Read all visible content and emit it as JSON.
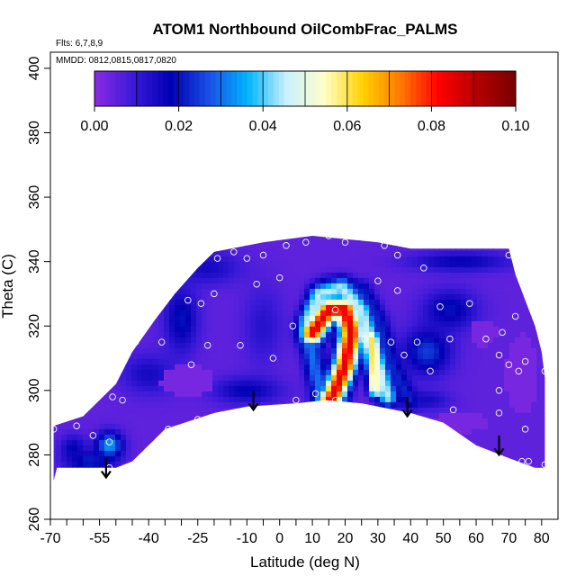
{
  "chart_data": {
    "type": "heatmap",
    "title": "ATOM1 Northbound OilCombFrac_PALMS",
    "notes": [
      "Flts: 6,7,8,9",
      "MMDD: 0812,0815,0817,0820"
    ],
    "xlabel": "Latitude (deg N)",
    "ylabel": "Theta (C)",
    "xlim": [
      -70,
      85
    ],
    "ylim": [
      260,
      405
    ],
    "x_ticks_major": [
      -70,
      -55,
      -40,
      -25,
      -10,
      0,
      10,
      20,
      30,
      40,
      50,
      60,
      70,
      80
    ],
    "x_ticks_minor": [
      -65,
      -60,
      -50,
      -45,
      -35,
      -30,
      -20,
      -15,
      -5,
      5,
      15,
      25,
      35,
      45,
      55,
      65,
      75
    ],
    "y_ticks": [
      260,
      280,
      300,
      320,
      340,
      360,
      380,
      400
    ],
    "colorbar": {
      "range": [
        0,
        0.1
      ],
      "ticks": [
        "0.00",
        "0.02",
        "0.04",
        "0.06",
        "0.08",
        "0.10"
      ],
      "tick_values": [
        0,
        0.02,
        0.04,
        0.06,
        0.08,
        0.1
      ],
      "colors": [
        "#8a2be2",
        "#3a1ad8",
        "#0000b4",
        "#1a50e6",
        "#00b4ff",
        "#c8f0ff",
        "#ffffc8",
        "#ffd200",
        "#ff7800",
        "#ff0000",
        "#b40000",
        "#780000"
      ]
    },
    "field_outline": [
      [
        -69,
        272
      ],
      [
        -69,
        289
      ],
      [
        -60,
        292
      ],
      [
        -50,
        302
      ],
      [
        -45,
        312
      ],
      [
        -38,
        322
      ],
      [
        -32,
        330
      ],
      [
        -25,
        338
      ],
      [
        -20,
        343
      ],
      [
        -5,
        346
      ],
      [
        10,
        348
      ],
      [
        30,
        346
      ],
      [
        40,
        344
      ],
      [
        70,
        344
      ],
      [
        72,
        336
      ],
      [
        75,
        328
      ],
      [
        78,
        320
      ],
      [
        80,
        312
      ],
      [
        81,
        304
      ],
      [
        81,
        276
      ],
      [
        78,
        276
      ],
      [
        70,
        279
      ],
      [
        60,
        283
      ],
      [
        50,
        290
      ],
      [
        40,
        293
      ],
      [
        25,
        296
      ],
      [
        14,
        297
      ],
      [
        5,
        296
      ],
      [
        -10,
        295
      ],
      [
        -20,
        293
      ],
      [
        -35,
        288
      ],
      [
        -45,
        278
      ],
      [
        -50,
        276
      ],
      [
        -68,
        276
      ]
    ],
    "background_value": 0.005,
    "features": [
      {
        "kind": "ridge",
        "points": [
          [
            10,
            318
          ],
          [
            15,
            325
          ],
          [
            20,
            325
          ],
          [
            22,
            318
          ],
          [
            20,
            308
          ],
          [
            17,
            300
          ],
          [
            15,
            296
          ]
        ],
        "value": 0.085,
        "width": 3.5
      },
      {
        "kind": "ridge",
        "points": [
          [
            9,
            322
          ],
          [
            12,
            330
          ],
          [
            19,
            332
          ],
          [
            25,
            325
          ],
          [
            28,
            315
          ],
          [
            31,
            305
          ],
          [
            33,
            298
          ]
        ],
        "value": 0.045,
        "width": 3
      },
      {
        "kind": "ridge",
        "points": [
          [
            9,
            316
          ],
          [
            11,
            305
          ],
          [
            13,
            298
          ]
        ],
        "value": 0.03,
        "width": 3
      },
      {
        "kind": "ridge",
        "points": [
          [
            15,
            332
          ],
          [
            25,
            331
          ],
          [
            30,
            322
          ],
          [
            34,
            308
          ],
          [
            38,
            300
          ],
          [
            40,
            297
          ]
        ],
        "value": 0.022,
        "width": 3
      },
      {
        "kind": "ridge",
        "points": [
          [
            28,
            316
          ],
          [
            29,
            300
          ]
        ],
        "value": 0.06,
        "width": 1.8
      },
      {
        "kind": "blob",
        "x": -52,
        "y": 283,
        "sx": 4,
        "sy": 4,
        "value": 0.035
      },
      {
        "kind": "blob",
        "x": -58,
        "y": 278,
        "sx": 7,
        "sy": 3,
        "value": 0.022
      },
      {
        "kind": "blob",
        "x": -63,
        "y": 282,
        "sx": 4,
        "sy": 4,
        "value": 0.018
      },
      {
        "kind": "blob",
        "x": -40,
        "y": 305,
        "sx": 8,
        "sy": 6,
        "value": 0.015
      },
      {
        "kind": "blob",
        "x": -30,
        "y": 322,
        "sx": 5,
        "sy": 10,
        "value": 0.02
      },
      {
        "kind": "blob",
        "x": -22,
        "y": 338,
        "sx": 10,
        "sy": 5,
        "value": 0.015
      },
      {
        "kind": "blob",
        "x": -5,
        "y": 320,
        "sx": 6,
        "sy": 12,
        "value": 0.012
      },
      {
        "kind": "blob",
        "x": -10,
        "y": 300,
        "sx": 10,
        "sy": 4,
        "value": 0.018
      },
      {
        "kind": "blob",
        "x": 45,
        "y": 312,
        "sx": 7,
        "sy": 7,
        "value": 0.025
      },
      {
        "kind": "blob",
        "x": 52,
        "y": 325,
        "sx": 8,
        "sy": 6,
        "value": 0.02
      },
      {
        "kind": "blob",
        "x": 55,
        "y": 340,
        "sx": 15,
        "sy": 3,
        "value": 0.018
      },
      {
        "kind": "blob",
        "x": 45,
        "y": 297,
        "sx": 7,
        "sy": 3,
        "value": 0.015
      },
      {
        "kind": "blob",
        "x": 66,
        "y": 302,
        "sx": 6,
        "sy": 10,
        "value": 0.003
      },
      {
        "kind": "blob",
        "x": 74,
        "y": 305,
        "sx": 6,
        "sy": 15,
        "value": 0.0
      },
      {
        "kind": "blob",
        "x": -28,
        "y": 303,
        "sx": 10,
        "sy": 6,
        "value": 0.0
      },
      {
        "kind": "blob",
        "x": 55,
        "y": 290,
        "sx": 10,
        "sy": 4,
        "value": 0.0
      },
      {
        "kind": "blob",
        "x": 62,
        "y": 318,
        "sx": 5,
        "sy": 5,
        "value": 0.0
      }
    ],
    "points": [
      [
        -69,
        288
      ],
      [
        -62,
        289
      ],
      [
        -57,
        298
      ],
      [
        -53,
        307
      ],
      [
        -51,
        298
      ],
      [
        -48,
        297
      ],
      [
        -44,
        315
      ],
      [
        -36,
        315
      ],
      [
        -34,
        288
      ],
      [
        -28,
        328
      ],
      [
        -27,
        308
      ],
      [
        -25,
        291
      ],
      [
        -24,
        327
      ],
      [
        -22,
        314
      ],
      [
        -20,
        330
      ],
      [
        -19,
        341
      ],
      [
        -14,
        343
      ],
      [
        -12,
        314
      ],
      [
        -10,
        341
      ],
      [
        -7,
        333
      ],
      [
        -5,
        342
      ],
      [
        -2,
        310
      ],
      [
        0,
        335
      ],
      [
        2,
        345
      ],
      [
        4,
        320
      ],
      [
        5,
        297
      ],
      [
        8,
        346
      ],
      [
        11,
        299
      ],
      [
        15,
        348
      ],
      [
        17,
        297
      ],
      [
        17,
        325
      ],
      [
        20,
        346
      ],
      [
        26,
        316
      ],
      [
        30,
        334
      ],
      [
        32,
        345
      ],
      [
        34,
        315
      ],
      [
        36,
        331
      ],
      [
        36,
        342
      ],
      [
        38,
        311
      ],
      [
        42,
        315
      ],
      [
        44,
        338
      ],
      [
        46,
        306
      ],
      [
        49,
        326
      ],
      [
        52,
        316
      ],
      [
        53,
        294
      ],
      [
        58,
        327
      ],
      [
        63,
        316
      ],
      [
        67,
        311
      ],
      [
        67,
        300
      ],
      [
        67,
        293
      ],
      [
        68,
        318
      ],
      [
        70,
        308
      ],
      [
        70,
        342
      ],
      [
        72,
        323
      ],
      [
        73,
        306
      ],
      [
        74,
        278
      ],
      [
        75,
        309
      ],
      [
        75,
        288
      ],
      [
        76,
        278
      ],
      [
        81,
        306
      ],
      [
        81,
        277
      ],
      [
        -52,
        276
      ],
      [
        -52,
        284
      ],
      [
        -57,
        286
      ]
    ],
    "arrows": [
      {
        "x": -53,
        "y_from": 279,
        "y_to": 273
      },
      {
        "x": -8,
        "y_from": 300,
        "y_to": 294
      },
      {
        "x": 39,
        "y_from": 298,
        "y_to": 292
      },
      {
        "x": 67,
        "y_from": 286,
        "y_to": 280
      }
    ]
  }
}
